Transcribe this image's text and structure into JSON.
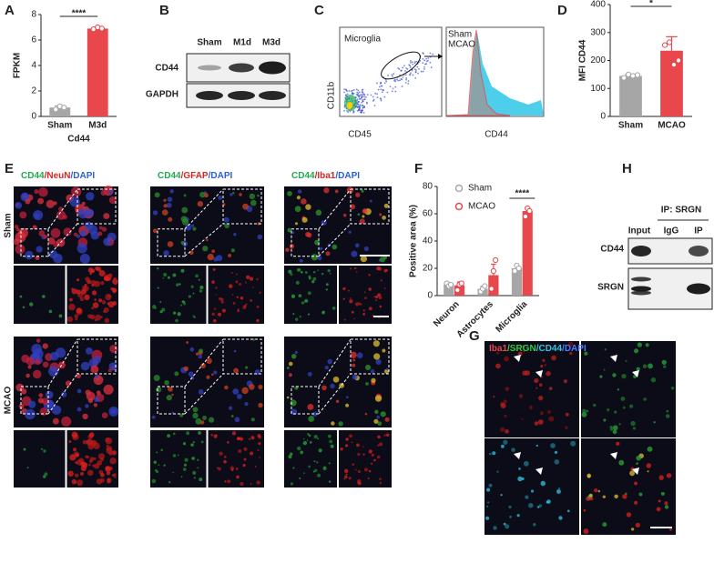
{
  "chart_data": [
    {
      "type": "bar",
      "x_label": "Cd44",
      "y_label": "FPKM",
      "categories": [
        "Sham",
        "M3d"
      ],
      "values": [
        0.7,
        6.9
      ],
      "errors": [
        0.12,
        0.08
      ],
      "points": [
        [
          0.55,
          0.8,
          0.7
        ],
        [
          6.85,
          7.0,
          6.9
        ]
      ],
      "colors": [
        "#a6a6a6",
        "#e8474c"
      ],
      "ylim": [
        0,
        8
      ],
      "yticks": [
        0,
        2,
        4,
        6,
        8
      ],
      "annotation": "****"
    },
    {
      "type": "bar",
      "y_label": "MFI CD44",
      "categories": [
        "Sham",
        "MCAO"
      ],
      "values": [
        145,
        235
      ],
      "errors": [
        5,
        50
      ],
      "points": [
        [
          138,
          150,
          145,
          148
        ],
        [
          255,
          265,
          185,
          200
        ]
      ],
      "colors": [
        "#a6a6a6",
        "#e8474c"
      ],
      "ylim": [
        0,
        400
      ],
      "yticks": [
        0,
        100,
        200,
        300,
        400
      ],
      "annotation": "*"
    },
    {
      "type": "grouped_bar",
      "y_label": "Positive area (%)",
      "categories": [
        "Neuron",
        "Astrocytes",
        "Microglia"
      ],
      "series": [
        {
          "name": "Sham",
          "color": "#a6a6a6",
          "values": [
            8,
            5,
            20
          ],
          "errors": [
            1.5,
            1.8,
            1.8
          ],
          "points": [
            [
              9,
              7,
              8
            ],
            [
              3,
              5,
              7
            ],
            [
              18,
              22,
              20
            ]
          ]
        },
        {
          "name": "MCAO",
          "color": "#e8474c",
          "values": [
            7.5,
            15,
            62
          ],
          "errors": [
            2.5,
            8,
            2
          ],
          "points": [
            [
              4,
              8,
              9
            ],
            [
              5,
              18,
              26
            ],
            [
              58,
              64,
              62
            ]
          ]
        }
      ],
      "ylim": [
        0,
        80
      ],
      "yticks": [
        0,
        20,
        40,
        60,
        80
      ],
      "annotation": "****",
      "legend": "top"
    }
  ],
  "panels": [
    "A",
    "B",
    "C",
    "D",
    "E",
    "F",
    "G",
    "H"
  ],
  "blot_b": {
    "lanes": [
      "Sham",
      "M1d",
      "M3d"
    ],
    "rows": [
      "CD44",
      "GAPDH"
    ]
  },
  "flow_c": {
    "gate": "Microglia",
    "y_label": "CD11b",
    "x_label": "CD45",
    "hist_x_label": "CD44",
    "legend": [
      {
        "name": "Sham",
        "color": "#e8474c"
      },
      {
        "name": "MCAO",
        "color": "#2ec5e6"
      }
    ]
  },
  "panel_e": {
    "columns": [
      [
        {
          "text": "CD44",
          "color": "#1faa4f"
        },
        {
          "text": "/NeuN",
          "color": "#d62728"
        },
        {
          "text": "/DAPI",
          "color": "#2b5fd9"
        }
      ],
      [
        {
          "text": "CD44",
          "color": "#1faa4f"
        },
        {
          "text": "/GFAP",
          "color": "#d62728"
        },
        {
          "text": "/DAPI",
          "color": "#2b5fd9"
        }
      ],
      [
        {
          "text": "CD44",
          "color": "#1faa4f"
        },
        {
          "text": "/Iba1",
          "color": "#d62728"
        },
        {
          "text": "/DAPI",
          "color": "#2b5fd9"
        }
      ]
    ],
    "rows": [
      "Sham",
      "MCAO"
    ]
  },
  "panel_g": {
    "stain": [
      {
        "text": "Iba1",
        "color": "#e8474c"
      },
      {
        "text": "/SRGN",
        "color": "#2ecc40"
      },
      {
        "text": "/CD44",
        "color": "#2ec5e6"
      },
      {
        "text": "/DAPI",
        "color": "#4a7bff"
      }
    ]
  },
  "panel_h": {
    "header": "IP: SRGN",
    "lanes": [
      "Input",
      "IgG",
      "IP"
    ],
    "rows": [
      "CD44",
      "SRGN"
    ]
  }
}
